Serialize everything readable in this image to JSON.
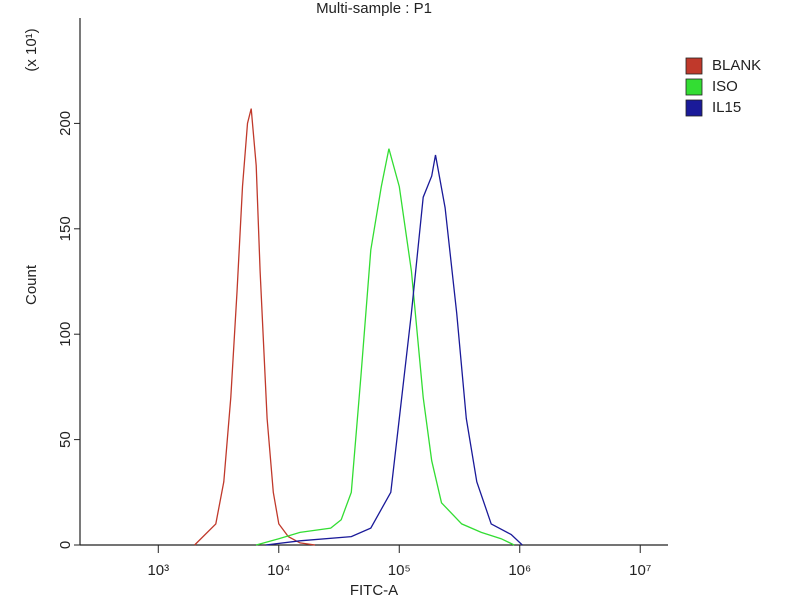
{
  "chart_data": {
    "type": "line",
    "title": "Multi-sample : P1",
    "x_label": "FITC-A",
    "y_label": "Count",
    "y_multiplier": "(x 10¹)",
    "xscale": "log",
    "xlim": [
      224,
      17000000
    ],
    "xticks": [
      {
        "value": 1000,
        "label": "10³"
      },
      {
        "value": 10000,
        "label": "10⁴"
      },
      {
        "value": 100000,
        "label": "10⁵"
      },
      {
        "value": 1000000,
        "label": "10⁶"
      },
      {
        "value": 10000000,
        "label": "10⁷"
      }
    ],
    "ylim": [
      0,
      250
    ],
    "yticks": [
      0,
      50,
      100,
      150,
      200
    ],
    "grid": false,
    "legend": "top-right",
    "series": [
      {
        "name": "BLANK",
        "color": "#c0392b",
        "x": [
          2000,
          3000,
          3500,
          4000,
          4500,
          5000,
          5500,
          5900,
          6500,
          7000,
          8000,
          9000,
          10000,
          12000,
          15000,
          20000
        ],
        "values": [
          0,
          10,
          30,
          70,
          120,
          170,
          200,
          207,
          180,
          130,
          60,
          25,
          10,
          4,
          1,
          0
        ]
      },
      {
        "name": "ISO",
        "color": "#33dd33",
        "x": [
          6500,
          10000,
          15000,
          27000,
          33000,
          40000,
          48000,
          58000,
          71000,
          82000,
          100000,
          126000,
          158000,
          186000,
          224000,
          330000,
          480000,
          700000,
          900000
        ],
        "values": [
          0,
          3,
          6,
          8,
          12,
          25,
          80,
          140,
          170,
          188,
          170,
          130,
          70,
          40,
          20,
          10,
          6,
          3,
          0
        ]
      },
      {
        "name": "IL15",
        "color": "#1a1a99",
        "x": [
          7800,
          15000,
          40000,
          58000,
          85000,
          100000,
          126000,
          158000,
          186000,
          200000,
          240000,
          300000,
          360000,
          440000,
          580000,
          850000,
          1050000
        ],
        "values": [
          0,
          2,
          4,
          8,
          25,
          60,
          110,
          165,
          175,
          185,
          160,
          110,
          60,
          30,
          10,
          5,
          0
        ]
      }
    ]
  }
}
